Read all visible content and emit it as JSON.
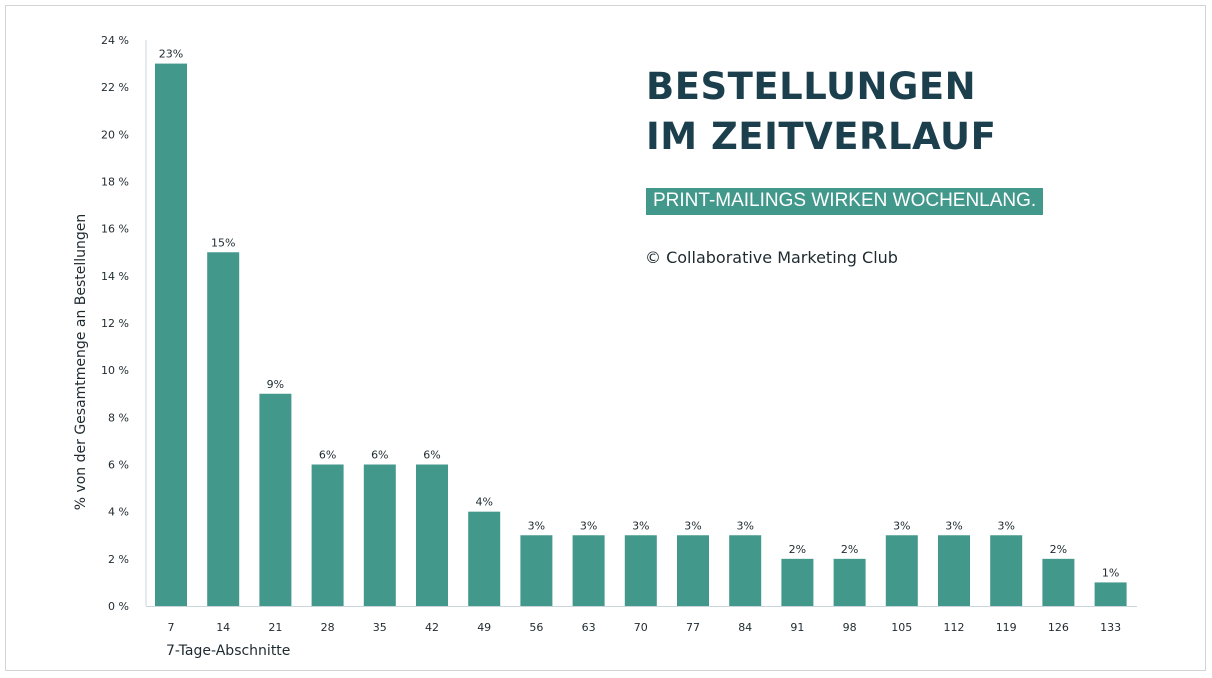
{
  "chart_data": {
    "type": "bar",
    "title": "BESTELLUNGEN IM ZEITVERLAUF",
    "title_lines": [
      "BESTELLUNGEN",
      "IM ZEITVERLAUF"
    ],
    "subtitle": "PRINT-MAILINGS WIRKEN WOCHENLANG.",
    "copyright": "© Collaborative Marketing Club",
    "xlabel": "7-Tage-Abschnitte",
    "ylabel": "% von der Gesamtmenge an Bestellungen",
    "categories": [
      "7",
      "14",
      "21",
      "28",
      "35",
      "42",
      "49",
      "56",
      "63",
      "70",
      "77",
      "84",
      "91",
      "98",
      "105",
      "112",
      "119",
      "126",
      "133"
    ],
    "values": [
      23,
      15,
      9,
      6,
      6,
      6,
      4,
      3,
      3,
      3,
      3,
      3,
      2,
      2,
      3,
      3,
      3,
      2,
      1
    ],
    "data_labels": [
      "23%",
      "15%",
      "9%",
      "6%",
      "6%",
      "6%",
      "4%",
      "3%",
      "3%",
      "3%",
      "3%",
      "3%",
      "2%",
      "2%",
      "3%",
      "3%",
      "3%",
      "2%",
      "1%"
    ],
    "ylim": [
      0,
      24
    ],
    "yticks": [
      0,
      2,
      4,
      6,
      8,
      10,
      12,
      14,
      16,
      18,
      20,
      22,
      24
    ],
    "ytick_labels": [
      "0 %",
      "2 %",
      "4 %",
      "6 %",
      "8 %",
      "10 %",
      "12 %",
      "14 %",
      "16 %",
      "18 %",
      "20 %",
      "22 %",
      "24 %"
    ],
    "grid": false,
    "legend": "none",
    "colors": {
      "bar": "#43988c",
      "title": "#1b3f4c",
      "subtitle_bg": "#43988c",
      "axis": "#c9d6dc",
      "text": "#1e2a30"
    }
  }
}
